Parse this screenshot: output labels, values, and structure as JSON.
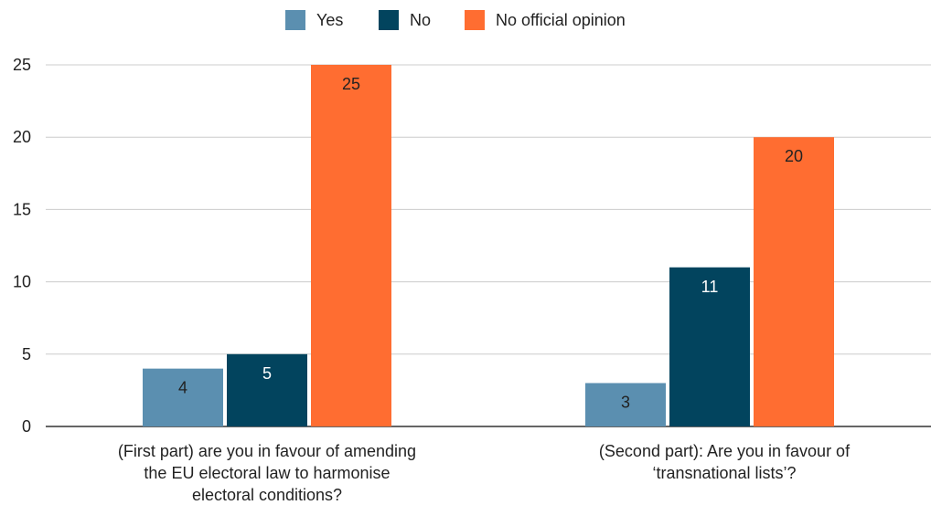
{
  "chart_data": {
    "type": "bar",
    "categories": [
      [
        "(First part) are you in favour of amending",
        "the EU electoral law to harmonise",
        "electoral conditions?"
      ],
      [
        "(Second part): Are you in favour of",
        "‘transnational lists’?"
      ]
    ],
    "series": [
      {
        "name": "Yes",
        "color": "#5b8fb0",
        "label_color": "#222222",
        "values": [
          4,
          3
        ]
      },
      {
        "name": "No",
        "color": "#02445e",
        "label_color": "#ffffff",
        "values": [
          5,
          11
        ]
      },
      {
        "name": "No official opinion",
        "color": "#ff6d31",
        "label_color": "#222222",
        "values": [
          25,
          20
        ]
      }
    ],
    "ylim": [
      0,
      25
    ],
    "yticks": [
      0,
      5,
      10,
      15,
      20,
      25
    ],
    "grid": true,
    "legend_position": "top-center",
    "data_labels": true
  }
}
